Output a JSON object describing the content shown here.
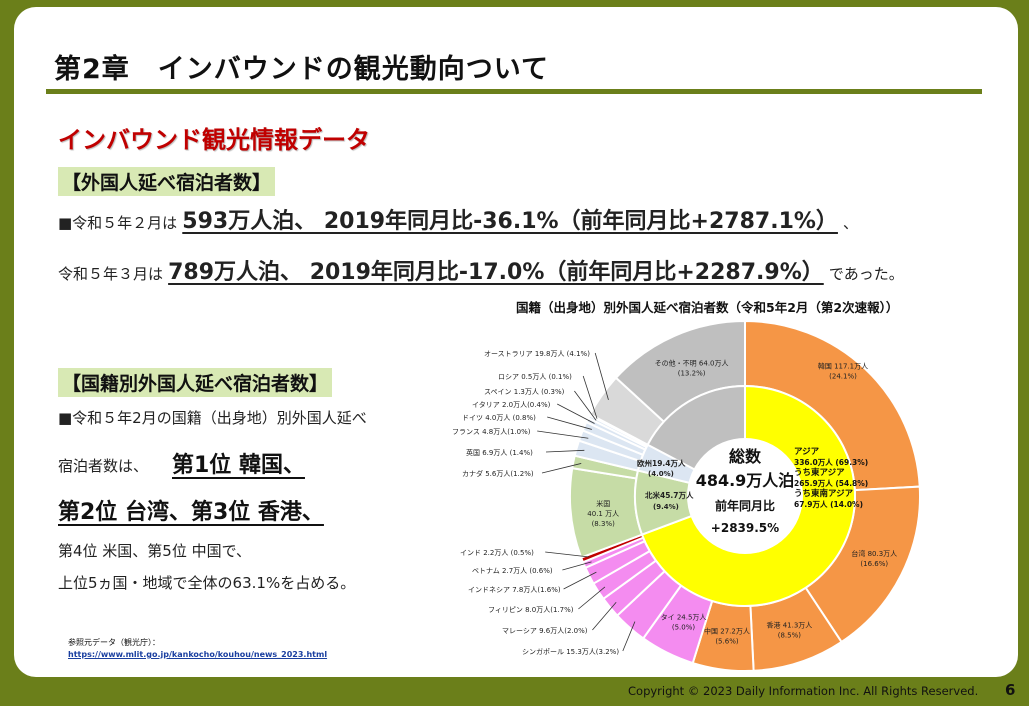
{
  "title": "第2章　インバウンドの観光動向ついて",
  "section_heading": "インバウンド観光情報データ",
  "box1": "【外国人延べ宿泊者数】",
  "line1": {
    "prefix": "■令和５年２月は",
    "main": "593万人泊、 2019年同月比-36.1%（前年同月比+2787.1%）",
    "suffix": "、"
  },
  "line2": {
    "prefix": "令和５年３月は",
    "main": "789万人泊、 2019年同月比-17.0%（前年同月比+2287.9%）",
    "suffix": "であった。"
  },
  "box2": "【国籍別外国人延べ宿泊者数】",
  "para1": "■令和５年2月の国籍（出身地）別外国人延べ",
  "para2_pre": "宿泊者数は、",
  "rank1": "第1位 韓国、",
  "rank2": "第2位 台湾、第3位 香港、",
  "para3": "第4位 米国、第5位 中国で、",
  "para4": "上位5ヵ国・地域で全体の63.1%を占める。",
  "reference": {
    "label": "参照元データ（観光庁）：",
    "url": "https://www.mlit.go.jp/kankocho/kouhou/news_2023.html"
  },
  "copyright": "Copyright ©  2023 Daily Information Inc. All Rights Reserved.",
  "page_number": "6",
  "chart_data": {
    "type": "pie",
    "title": "国籍（出身地）別外国人延べ宿泊者数（令和5年2月（第2次速報））",
    "center": {
      "line1": "総数",
      "line2": "484.9万人泊",
      "line3": "前年同月比",
      "line4": "+2839.5%"
    },
    "outer": [
      {
        "name": "韓国",
        "value": 117.1,
        "label": "韓国 117.1万人",
        "pct": "(24.1%)",
        "color": "#f59646"
      },
      {
        "name": "台湾",
        "value": 80.3,
        "label": "台湾 80.3万人",
        "pct": "(16.6%)",
        "color": "#f59646"
      },
      {
        "name": "香港",
        "value": 41.3,
        "label": "香港 41.3万人",
        "pct": "(8.5%)",
        "color": "#f59646"
      },
      {
        "name": "中国",
        "value": 27.2,
        "label": "中国 27.2万人",
        "pct": "(5.6%)",
        "color": "#f59646"
      },
      {
        "name": "タイ",
        "value": 24.5,
        "label": "タイ 24.5万人",
        "pct": "(5.0%)",
        "color": "#f48cf0"
      },
      {
        "name": "シンガポール",
        "value": 15.3,
        "label": "シンガポール 15.3万人(3.2%)",
        "color": "#f48cf0"
      },
      {
        "name": "マレーシア",
        "value": 9.6,
        "label": "マレーシア 9.6万人(2.0%)",
        "color": "#f48cf0"
      },
      {
        "name": "フィリピン",
        "value": 8.0,
        "label": "フィリピン 8.0万人(1.7%)",
        "color": "#f48cf0"
      },
      {
        "name": "インドネシア",
        "value": 7.8,
        "label": "インドネシア 7.8万人(1.6%)",
        "color": "#f48cf0"
      },
      {
        "name": "ベトナム",
        "value": 2.7,
        "label": "ベトナム 2.7万人 (0.6%)",
        "color": "#f48cf0"
      },
      {
        "name": "インド",
        "value": 2.2,
        "label": "インド 2.2万人 (0.5%)",
        "color": "#c00000"
      },
      {
        "name": "米国",
        "value": 40.1,
        "label": "米国",
        "label2": "40.1 万人",
        "pct": "(8.3%)",
        "color": "#c6dca6"
      },
      {
        "name": "カナダ",
        "value": 5.6,
        "label": "カナダ 5.6万人(1.2%)",
        "color": "#c6dca6"
      },
      {
        "name": "英国",
        "value": 6.9,
        "label": "英国 6.9万人 (1.4%)",
        "color": "#dce6f2"
      },
      {
        "name": "フランス",
        "value": 4.8,
        "label": "フランス 4.8万人(1.0%)",
        "color": "#dce6f2"
      },
      {
        "name": "ドイツ",
        "value": 4.0,
        "label": "ドイツ 4.0万人 (0.8%)",
        "color": "#dce6f2"
      },
      {
        "name": "イタリア",
        "value": 2.0,
        "label": "イタリア 2.0万人(0.4%)",
        "color": "#dce6f2"
      },
      {
        "name": "スペイン",
        "value": 1.3,
        "label": "スペイン 1.3万人 (0.3%)",
        "color": "#dce6f2"
      },
      {
        "name": "ロシア",
        "value": 0.5,
        "label": "ロシア 0.5万人 (0.1%)",
        "color": "#dce6f2"
      },
      {
        "name": "オーストラリア",
        "value": 19.8,
        "label": "オーストラリア 19.8万人 (4.1%)",
        "color": "#d9d9d9"
      },
      {
        "name": "その他・不明",
        "value": 64.0,
        "label": "その他・不明 64.0万人",
        "pct": "(13.2%)",
        "color": "#bfbfbf"
      }
    ],
    "inner": [
      {
        "name": "アジア",
        "value": 336.0,
        "color": "#ffff00"
      },
      {
        "name": "北米",
        "value": 45.7,
        "label": "北米45.7万人",
        "pct": "(9.4%)",
        "color": "#c6dca6"
      },
      {
        "name": "欧州",
        "value": 19.4,
        "label": "欧州19.4万人",
        "pct": "(4.0%)",
        "color": "#dce6f2"
      },
      {
        "name": "その他",
        "value": 83.8,
        "color": "#bfbfbf"
      }
    ],
    "asia_breakdown": [
      "アジア",
      "336.0万人 (69.3%)",
      "うち東アジア",
      "265.9万人 (54.8%)",
      "うち東南アジア",
      "67.9万人 (14.0%)"
    ]
  }
}
